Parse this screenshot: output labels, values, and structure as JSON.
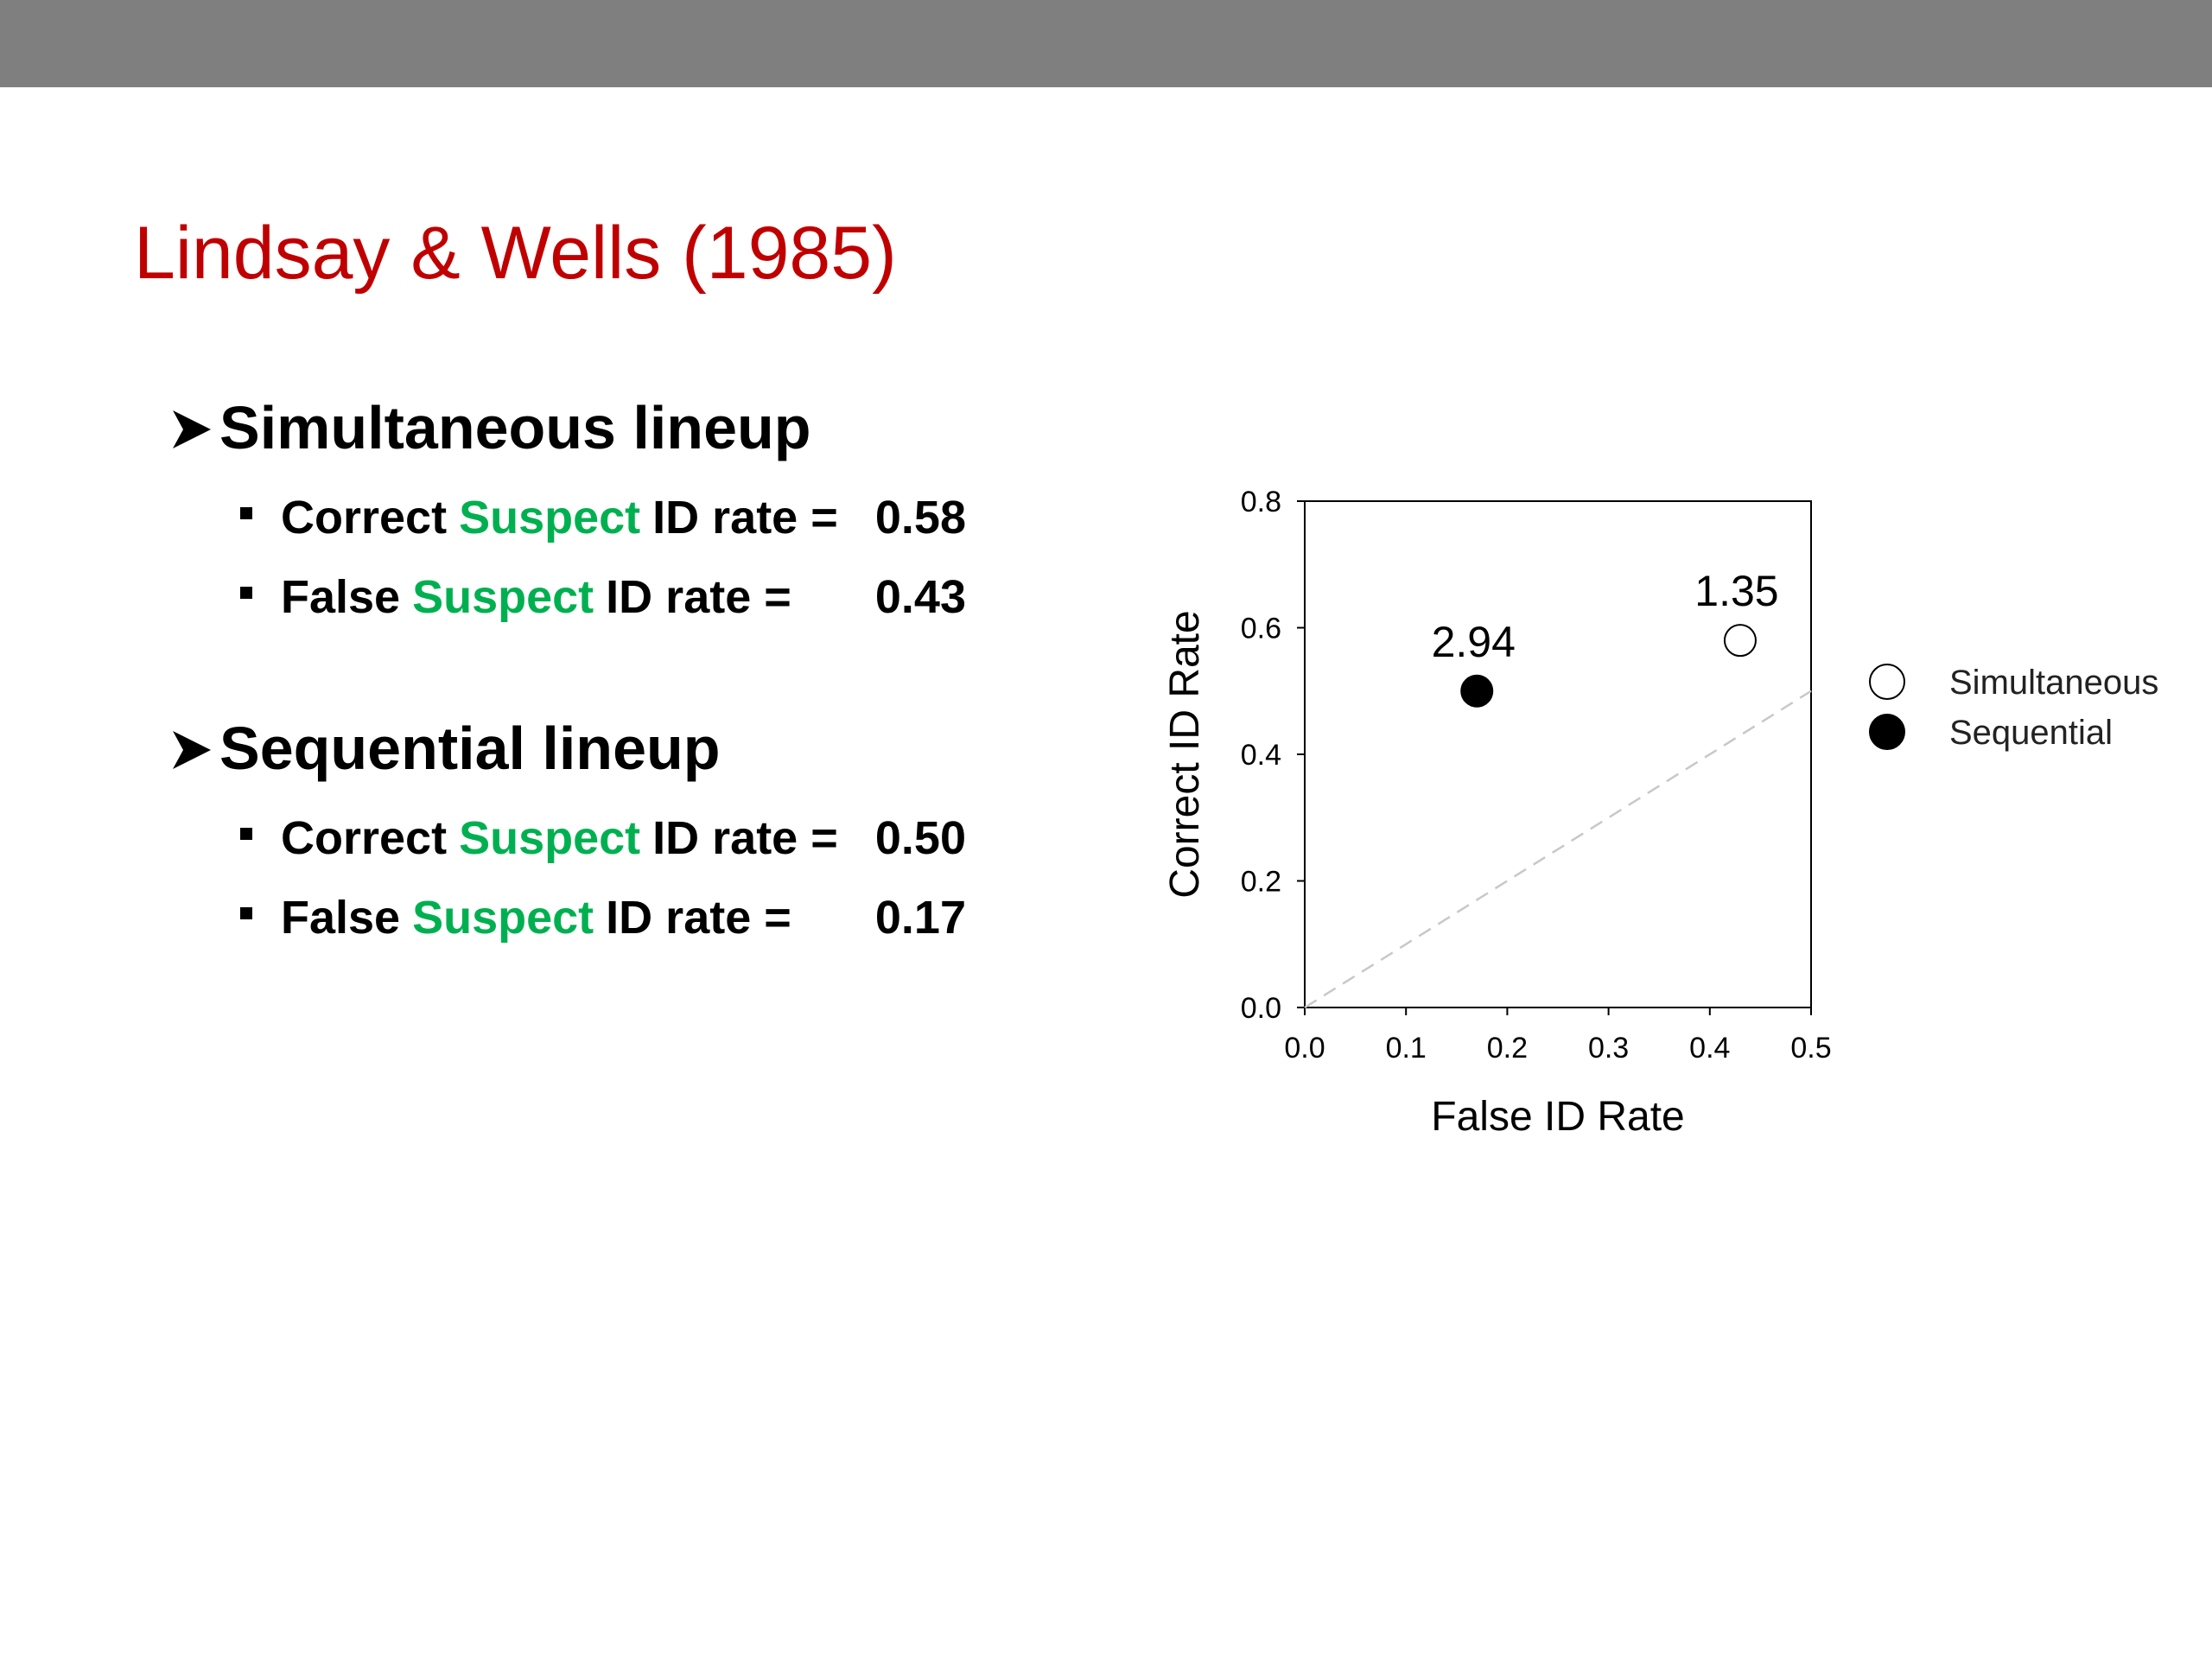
{
  "slide": {
    "title": "Lindsay & Wells (1985)",
    "sections": [
      {
        "heading": "Simultaneous lineup",
        "items": [
          {
            "before": "Correct",
            "highlight": "Suspect",
            "after": "ID rate =",
            "value": "0.58"
          },
          {
            "before": "False",
            "highlight": "Suspect",
            "after": "ID rate   =",
            "value": "0.43"
          }
        ]
      },
      {
        "heading": "Sequential lineup",
        "items": [
          {
            "before": "Correct",
            "highlight": "Suspect",
            "after": "ID rate =",
            "value": "0.50"
          },
          {
            "before": "False",
            "highlight": "Suspect",
            "after": "ID rate   =",
            "value": "0.17"
          }
        ]
      }
    ]
  },
  "chart_data": {
    "type": "scatter",
    "x_label": "False ID Rate",
    "y_label": "Correct ID Rate",
    "xlim": [
      0,
      0.5
    ],
    "ylim": [
      0,
      0.8
    ],
    "xticks": [
      {
        "value": 0,
        "label": "0.0"
      },
      0.1,
      0.2,
      0.3,
      0.4,
      0.5
    ],
    "yticks": [
      {
        "value": 0,
        "label": "0.0"
      },
      0.2,
      0.4,
      0.6,
      0.8
    ],
    "diagonal": true,
    "series": [
      {
        "name": "Simultaneous",
        "color": "#000000",
        "fill": "#ffffff",
        "x": [
          0.43
        ],
        "values": [
          0.58
        ],
        "labels": [
          "1.35"
        ]
      },
      {
        "name": "Sequential",
        "color": "#000000",
        "fill": "#000000",
        "x": [
          0.17
        ],
        "values": [
          0.5
        ],
        "labels": [
          "2.94"
        ]
      }
    ]
  }
}
